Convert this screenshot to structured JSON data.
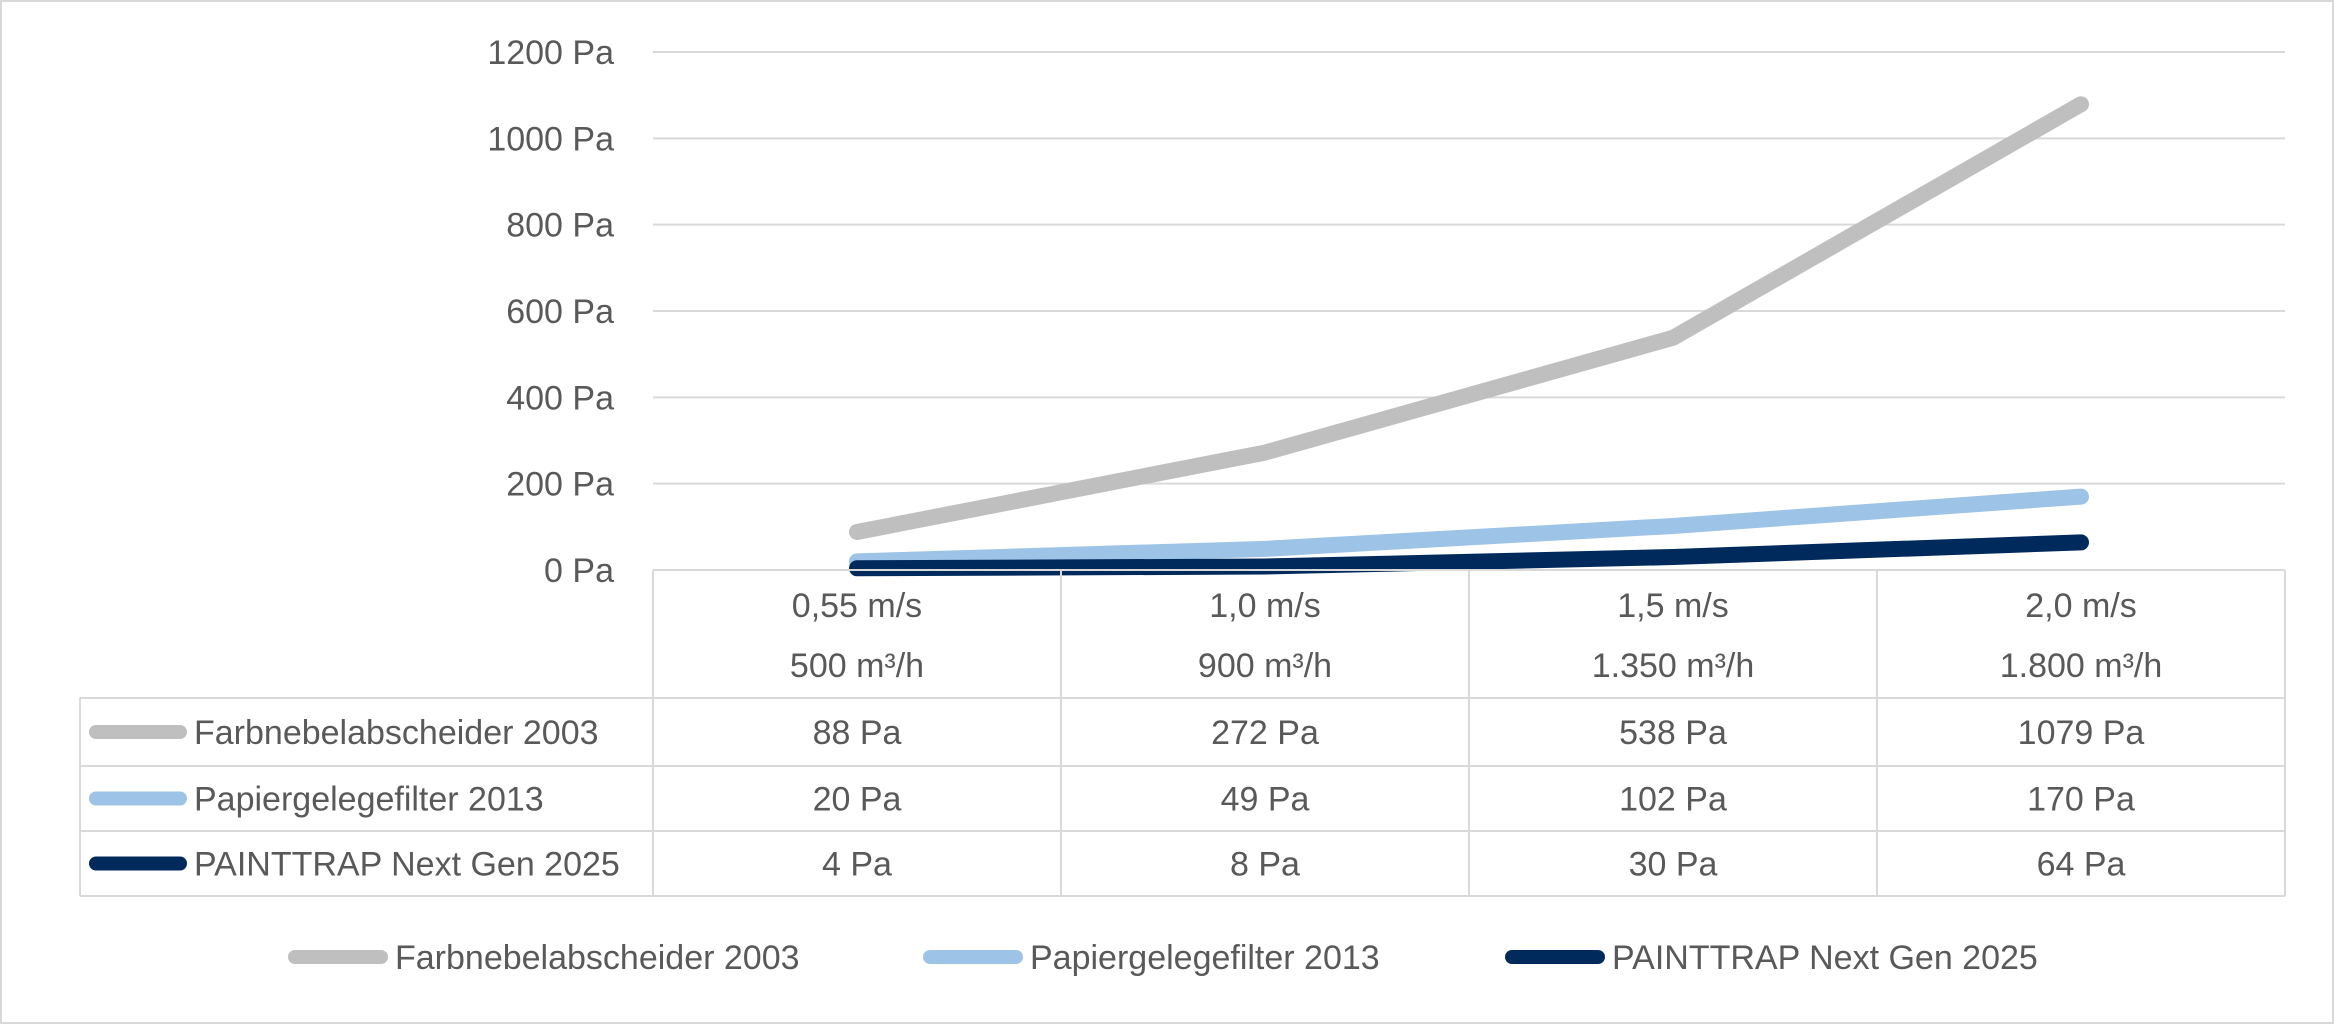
{
  "chart_data": {
    "type": "line",
    "categories": [
      [
        "0,55 m/s",
        "500 m³/h"
      ],
      [
        "1,0 m/s",
        "900 m³/h"
      ],
      [
        "1,5 m/s",
        "1.350 m³/h"
      ],
      [
        "2,0 m/s",
        "1.800 m³/h"
      ]
    ],
    "y_unit": "Pa",
    "ylim": [
      0,
      1200
    ],
    "y_ticks": [
      0,
      200,
      400,
      600,
      800,
      1000,
      1200
    ],
    "y_tick_labels": [
      "0 Pa",
      "200 Pa",
      "400 Pa",
      "600 Pa",
      "800 Pa",
      "1000 Pa",
      "1200 Pa"
    ],
    "grid": true,
    "legend_position": "bottom",
    "data_table": true,
    "series": [
      {
        "name": "Farbnebelabscheider 2003",
        "values": [
          88,
          272,
          538,
          1079
        ],
        "labels": [
          "88 Pa",
          "272 Pa",
          "538 Pa",
          "1079 Pa"
        ],
        "color": "#bfbfbf"
      },
      {
        "name": "Papiergelegefilter 2013",
        "values": [
          20,
          49,
          102,
          170
        ],
        "labels": [
          "20 Pa",
          "49 Pa",
          "102 Pa",
          "170 Pa"
        ],
        "color": "#9dc3e6"
      },
      {
        "name": "PAINTTRAP Next Gen 2025",
        "values": [
          4,
          8,
          30,
          64
        ],
        "labels": [
          "4 Pa",
          "8 Pa",
          "30 Pa",
          "64 Pa"
        ],
        "color": "#002a5c"
      }
    ]
  }
}
